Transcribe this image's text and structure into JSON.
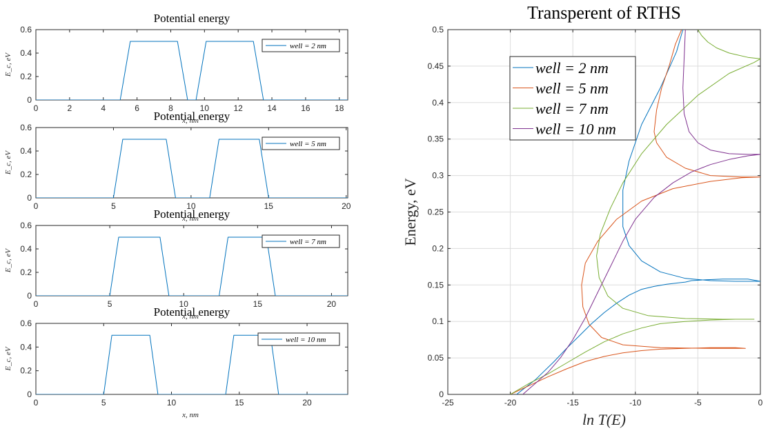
{
  "chart_data": [
    {
      "type": "line",
      "title": "Potential energy",
      "xlabel": "x, nm",
      "ylabel": "E_c, eV",
      "xlim": [
        0,
        18.5
      ],
      "ylim": [
        0,
        0.6
      ],
      "xticks": [
        0,
        2,
        4,
        6,
        8,
        10,
        12,
        14,
        16,
        18
      ],
      "yticks": [
        0,
        0.2,
        0.4,
        0.6
      ],
      "grid": false,
      "legend_position": "top-right",
      "series": [
        {
          "name": "well = 2 nm",
          "color": "#0072BD",
          "x": [
            0,
            5.0,
            5.6,
            8.4,
            9.0,
            9.5,
            10.1,
            12.9,
            13.5,
            18.5
          ],
          "y": [
            0,
            0,
            0.5,
            0.5,
            0,
            0,
            0.5,
            0.5,
            0,
            0
          ]
        }
      ]
    },
    {
      "type": "line",
      "title": "Potential energy",
      "xlabel": "x, nm",
      "ylabel": "E_c, eV",
      "xlim": [
        0,
        20.1
      ],
      "ylim": [
        0,
        0.6
      ],
      "xticks": [
        0,
        5,
        10,
        15,
        20
      ],
      "yticks": [
        0,
        0.2,
        0.4,
        0.6
      ],
      "grid": false,
      "legend_position": "top-right",
      "series": [
        {
          "name": "well = 5 nm",
          "color": "#0072BD",
          "x": [
            0,
            5.0,
            5.6,
            8.4,
            9.0,
            11.2,
            11.8,
            14.4,
            15.0,
            20.1
          ],
          "y": [
            0,
            0,
            0.5,
            0.5,
            0,
            0,
            0.5,
            0.5,
            0,
            0
          ]
        }
      ]
    },
    {
      "type": "line",
      "title": "Potential energy",
      "xlabel": "x, nm",
      "ylabel": "E_c, eV",
      "xlim": [
        0,
        21.1
      ],
      "ylim": [
        0,
        0.6
      ],
      "xticks": [
        0,
        5,
        10,
        15,
        20
      ],
      "yticks": [
        0,
        0.2,
        0.4,
        0.6
      ],
      "grid": false,
      "legend_position": "top-right",
      "series": [
        {
          "name": "well = 7 nm",
          "color": "#0072BD",
          "x": [
            0,
            5.0,
            5.6,
            8.4,
            9.0,
            12.4,
            13.0,
            15.6,
            16.2,
            21.1
          ],
          "y": [
            0,
            0,
            0.5,
            0.5,
            0,
            0,
            0.5,
            0.5,
            0,
            0
          ]
        }
      ]
    },
    {
      "type": "line",
      "title": "Potential energy",
      "xlabel": "x, nm",
      "ylabel": "E_c, eV",
      "xlim": [
        0,
        23
      ],
      "ylim": [
        0,
        0.6
      ],
      "xticks": [
        0,
        5,
        10,
        15,
        20
      ],
      "yticks": [
        0,
        0.2,
        0.4,
        0.6
      ],
      "grid": false,
      "legend_position": "top-right",
      "series": [
        {
          "name": "well = 10 nm",
          "color": "#0072BD",
          "x": [
            0,
            5.0,
            5.6,
            8.4,
            9.0,
            14.0,
            14.6,
            17.3,
            17.9,
            23
          ],
          "y": [
            0,
            0,
            0.5,
            0.5,
            0,
            0,
            0.5,
            0.5,
            0,
            0
          ]
        }
      ]
    },
    {
      "type": "line",
      "title": "Transperent of RTHS",
      "xlabel": "ln T(E)",
      "ylabel": "Energy, eV",
      "xlim": [
        -25,
        0
      ],
      "ylim": [
        0,
        0.5
      ],
      "xticks": [
        -25,
        -20,
        -15,
        -10,
        -5,
        0
      ],
      "yticks": [
        0,
        0.05,
        0.1,
        0.15,
        0.2,
        0.25,
        0.3,
        0.35,
        0.4,
        0.45,
        0.5
      ],
      "grid": true,
      "legend_position": "top-left",
      "series": [
        {
          "name": "well = 2 nm",
          "color": "#0072BD",
          "x": [
            -19.5,
            -18.0,
            -16.5,
            -15.5,
            -14.5,
            -13.5,
            -12.5,
            -11.5,
            -10.5,
            -9.5,
            -8.5,
            -7.5,
            -6.5,
            -6.0,
            -5.5,
            -4.5,
            -3.0,
            -1.0,
            0,
            -2.0,
            -4.0,
            -6.0,
            -8.0,
            -9.5,
            -10.5,
            -11.0,
            -11.0,
            -10.5,
            -9.5,
            -8.0,
            -6.7,
            -6.2
          ],
          "y": [
            0.0,
            0.02,
            0.045,
            0.063,
            0.08,
            0.097,
            0.112,
            0.125,
            0.136,
            0.144,
            0.148,
            0.151,
            0.153,
            0.154,
            0.156,
            0.157,
            0.158,
            0.158,
            0.155,
            0.155,
            0.156,
            0.159,
            0.168,
            0.183,
            0.204,
            0.23,
            0.28,
            0.32,
            0.37,
            0.42,
            0.47,
            0.5
          ]
        },
        {
          "name": "well = 5 nm",
          "color": "#D95319",
          "x": [
            -20.0,
            -18.5,
            -17.0,
            -15.5,
            -14.0,
            -12.5,
            -11.0,
            -9.5,
            -8.0,
            -6.0,
            -4.0,
            -2.0,
            -1.2,
            -4.0,
            -8.0,
            -11.0,
            -12.7,
            -13.7,
            -14.2,
            -14.3,
            -14.0,
            -13.0,
            -11.5,
            -9.5,
            -7.0,
            -4.0,
            -1.5,
            0,
            -1.5,
            -4.0,
            -6.0,
            -7.5,
            -8.3,
            -8.5,
            -8.3,
            -7.9,
            -7.3,
            -6.8,
            -6.3
          ],
          "y": [
            0.0,
            0.012,
            0.024,
            0.035,
            0.045,
            0.052,
            0.057,
            0.06,
            0.062,
            0.063,
            0.064,
            0.064,
            0.063,
            0.063,
            0.064,
            0.068,
            0.078,
            0.096,
            0.12,
            0.15,
            0.18,
            0.21,
            0.24,
            0.265,
            0.282,
            0.292,
            0.297,
            0.298,
            0.298,
            0.3,
            0.31,
            0.325,
            0.345,
            0.36,
            0.39,
            0.42,
            0.45,
            0.48,
            0.5
          ]
        },
        {
          "name": "well = 7 nm",
          "color": "#77AC30",
          "x": [
            -20.0,
            -18.5,
            -17.0,
            -15.5,
            -14.0,
            -12.5,
            -11.0,
            -9.5,
            -8.0,
            -6.0,
            -4.0,
            -2.0,
            -0.5,
            -3.0,
            -6.0,
            -9.0,
            -11.0,
            -12.2,
            -12.9,
            -13.1,
            -12.8,
            -12.0,
            -11.0,
            -9.5,
            -7.5,
            -5.0,
            -2.5,
            -0.5,
            0,
            -1.0,
            -2.5,
            -3.5,
            -4.2,
            -4.7,
            -5.0
          ],
          "y": [
            0.0,
            0.015,
            0.028,
            0.043,
            0.058,
            0.072,
            0.083,
            0.091,
            0.097,
            0.1,
            0.102,
            0.103,
            0.103,
            0.103,
            0.104,
            0.108,
            0.118,
            0.135,
            0.16,
            0.19,
            0.22,
            0.255,
            0.29,
            0.33,
            0.37,
            0.41,
            0.44,
            0.455,
            0.46,
            0.462,
            0.468,
            0.475,
            0.483,
            0.492,
            0.5
          ]
        },
        {
          "name": "well = 10 nm",
          "color": "#7E2F8E",
          "x": [
            -19.0,
            -18.0,
            -17.0,
            -16.0,
            -15.0,
            -14.0,
            -13.0,
            -12.0,
            -11.0,
            -10.0,
            -8.5,
            -7.0,
            -5.5,
            -4.0,
            -2.5,
            -1.0,
            0,
            -1.0,
            -2.5,
            -4.0,
            -5.0,
            -5.7,
            -6.1,
            -6.2,
            -6.1,
            -6.0
          ],
          "y": [
            0.0,
            0.015,
            0.03,
            0.05,
            0.075,
            0.105,
            0.14,
            0.175,
            0.21,
            0.24,
            0.27,
            0.29,
            0.305,
            0.315,
            0.322,
            0.327,
            0.329,
            0.329,
            0.33,
            0.335,
            0.345,
            0.36,
            0.385,
            0.42,
            0.46,
            0.5
          ]
        }
      ]
    }
  ]
}
